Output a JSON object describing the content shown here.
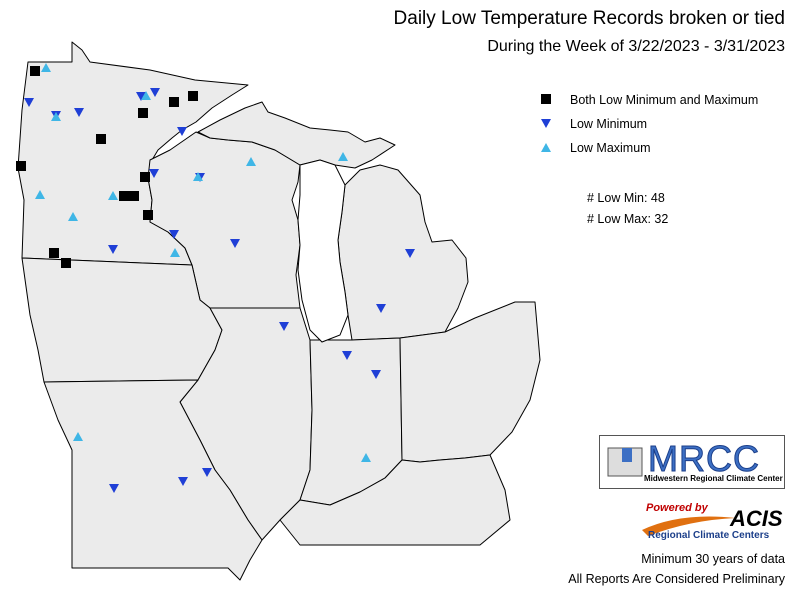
{
  "title": "Daily Low Temperature Records broken or tied",
  "subtitle": "During the Week of 3/22/2023 - 3/31/2023",
  "legend": {
    "both": "Both Low Minimum and Maximum",
    "low_min": "Low Minimum",
    "low_max": "Low Maximum"
  },
  "counts": {
    "low_min": "# Low Min: 48",
    "low_max": "# Low Max: 32"
  },
  "logos": {
    "mrcc": "MRCC",
    "mrcc_sub": "Midwestern Regional Climate Center",
    "powered": "Powered by",
    "acis": "ACIS",
    "acis_sub": "Regional Climate Centers"
  },
  "footer": {
    "line1": "Minimum 30 years of data",
    "line2": "All Reports Are Considered Preliminary"
  },
  "colors": {
    "both": "#000000",
    "low_min": "#1f3fd6",
    "low_max": "#3fb6e6",
    "land": "#ebebeb"
  },
  "markers": {
    "both": [
      [
        35,
        71
      ],
      [
        54,
        253
      ],
      [
        66,
        263
      ],
      [
        21,
        166
      ],
      [
        101,
        139
      ],
      [
        143,
        113
      ],
      [
        174,
        102
      ],
      [
        193,
        96
      ],
      [
        145,
        177
      ],
      [
        124,
        196
      ],
      [
        134,
        196
      ],
      [
        148,
        215
      ]
    ],
    "low_min": [
      [
        29,
        102
      ],
      [
        56,
        115
      ],
      [
        79,
        112
      ],
      [
        155,
        92
      ],
      [
        141,
        96
      ],
      [
        182,
        131
      ],
      [
        154,
        173
      ],
      [
        200,
        177
      ],
      [
        113,
        249
      ],
      [
        174,
        234
      ],
      [
        235,
        243
      ],
      [
        284,
        326
      ],
      [
        381,
        308
      ],
      [
        410,
        253
      ],
      [
        347,
        355
      ],
      [
        376,
        374
      ],
      [
        114,
        488
      ],
      [
        183,
        481
      ],
      [
        207,
        472
      ]
    ],
    "low_max": [
      [
        46,
        68
      ],
      [
        56,
        117
      ],
      [
        40,
        195
      ],
      [
        73,
        217
      ],
      [
        113,
        196
      ],
      [
        146,
        96
      ],
      [
        251,
        162
      ],
      [
        343,
        157
      ],
      [
        198,
        177
      ],
      [
        175,
        253
      ],
      [
        78,
        437
      ],
      [
        366,
        458
      ]
    ]
  }
}
